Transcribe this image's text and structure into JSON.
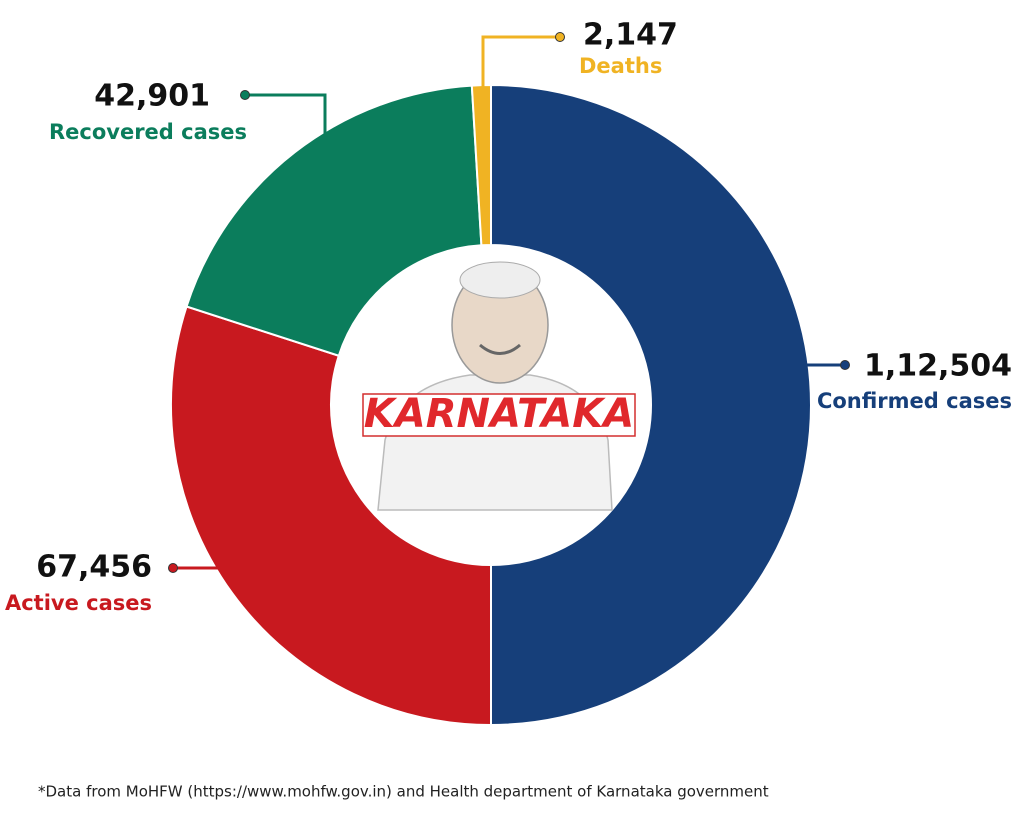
{
  "chart_data": {
    "type": "donut",
    "categories": [
      "Confirmed cases",
      "Active cases",
      "Recovered cases",
      "Deaths"
    ],
    "values": [
      112504,
      67456,
      42901,
      2147
    ],
    "value_labels": [
      "1,12,504",
      "67,456",
      "42,901",
      "2,147"
    ],
    "colors": [
      "#163f7a",
      "#c8191f",
      "#0b7d5c",
      "#f0b323"
    ],
    "center_label": "KARNATAKA",
    "footnote": "*Data from MoHFW (https://www.mohfw.gov.in) and Health department of Karnataka government"
  }
}
